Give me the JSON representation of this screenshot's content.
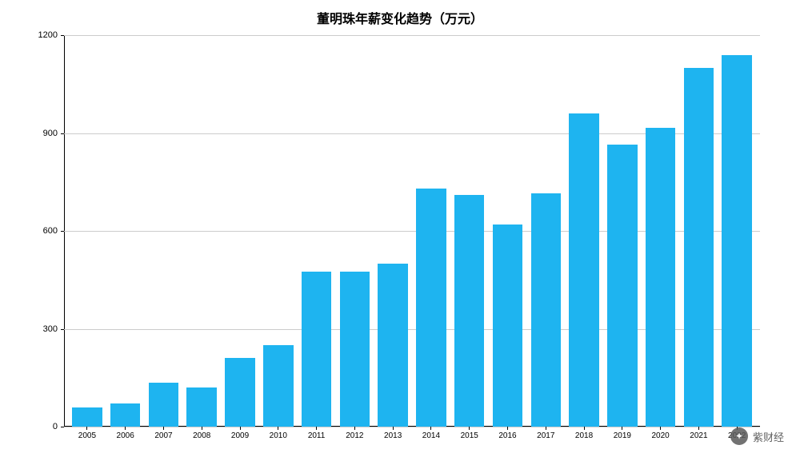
{
  "chart": {
    "type": "bar",
    "title": "董明珠年薪变化趋势（万元）",
    "title_fontsize": 16,
    "title_fontweight": "bold",
    "categories": [
      "2005",
      "2006",
      "2007",
      "2008",
      "2009",
      "2010",
      "2011",
      "2012",
      "2013",
      "2014",
      "2015",
      "2016",
      "2017",
      "2018",
      "2019",
      "2020",
      "2021",
      "2022"
    ],
    "values": [
      60,
      70,
      135,
      120,
      210,
      250,
      475,
      475,
      500,
      730,
      710,
      620,
      715,
      960,
      865,
      915,
      1100,
      1140
    ],
    "bar_color": "#1eb4f0",
    "background_color": "#ffffff",
    "grid_color": "#cccccc",
    "axis_color": "#000000",
    "ylim": [
      0,
      1200
    ],
    "yticks": [
      0,
      300,
      600,
      900,
      1200
    ],
    "label_fontsize": 11,
    "xlabel_fontsize": 10,
    "bar_width": 0.82,
    "grid": true
  },
  "watermark": {
    "icon_glyph": "✦",
    "text": "紫财经"
  }
}
